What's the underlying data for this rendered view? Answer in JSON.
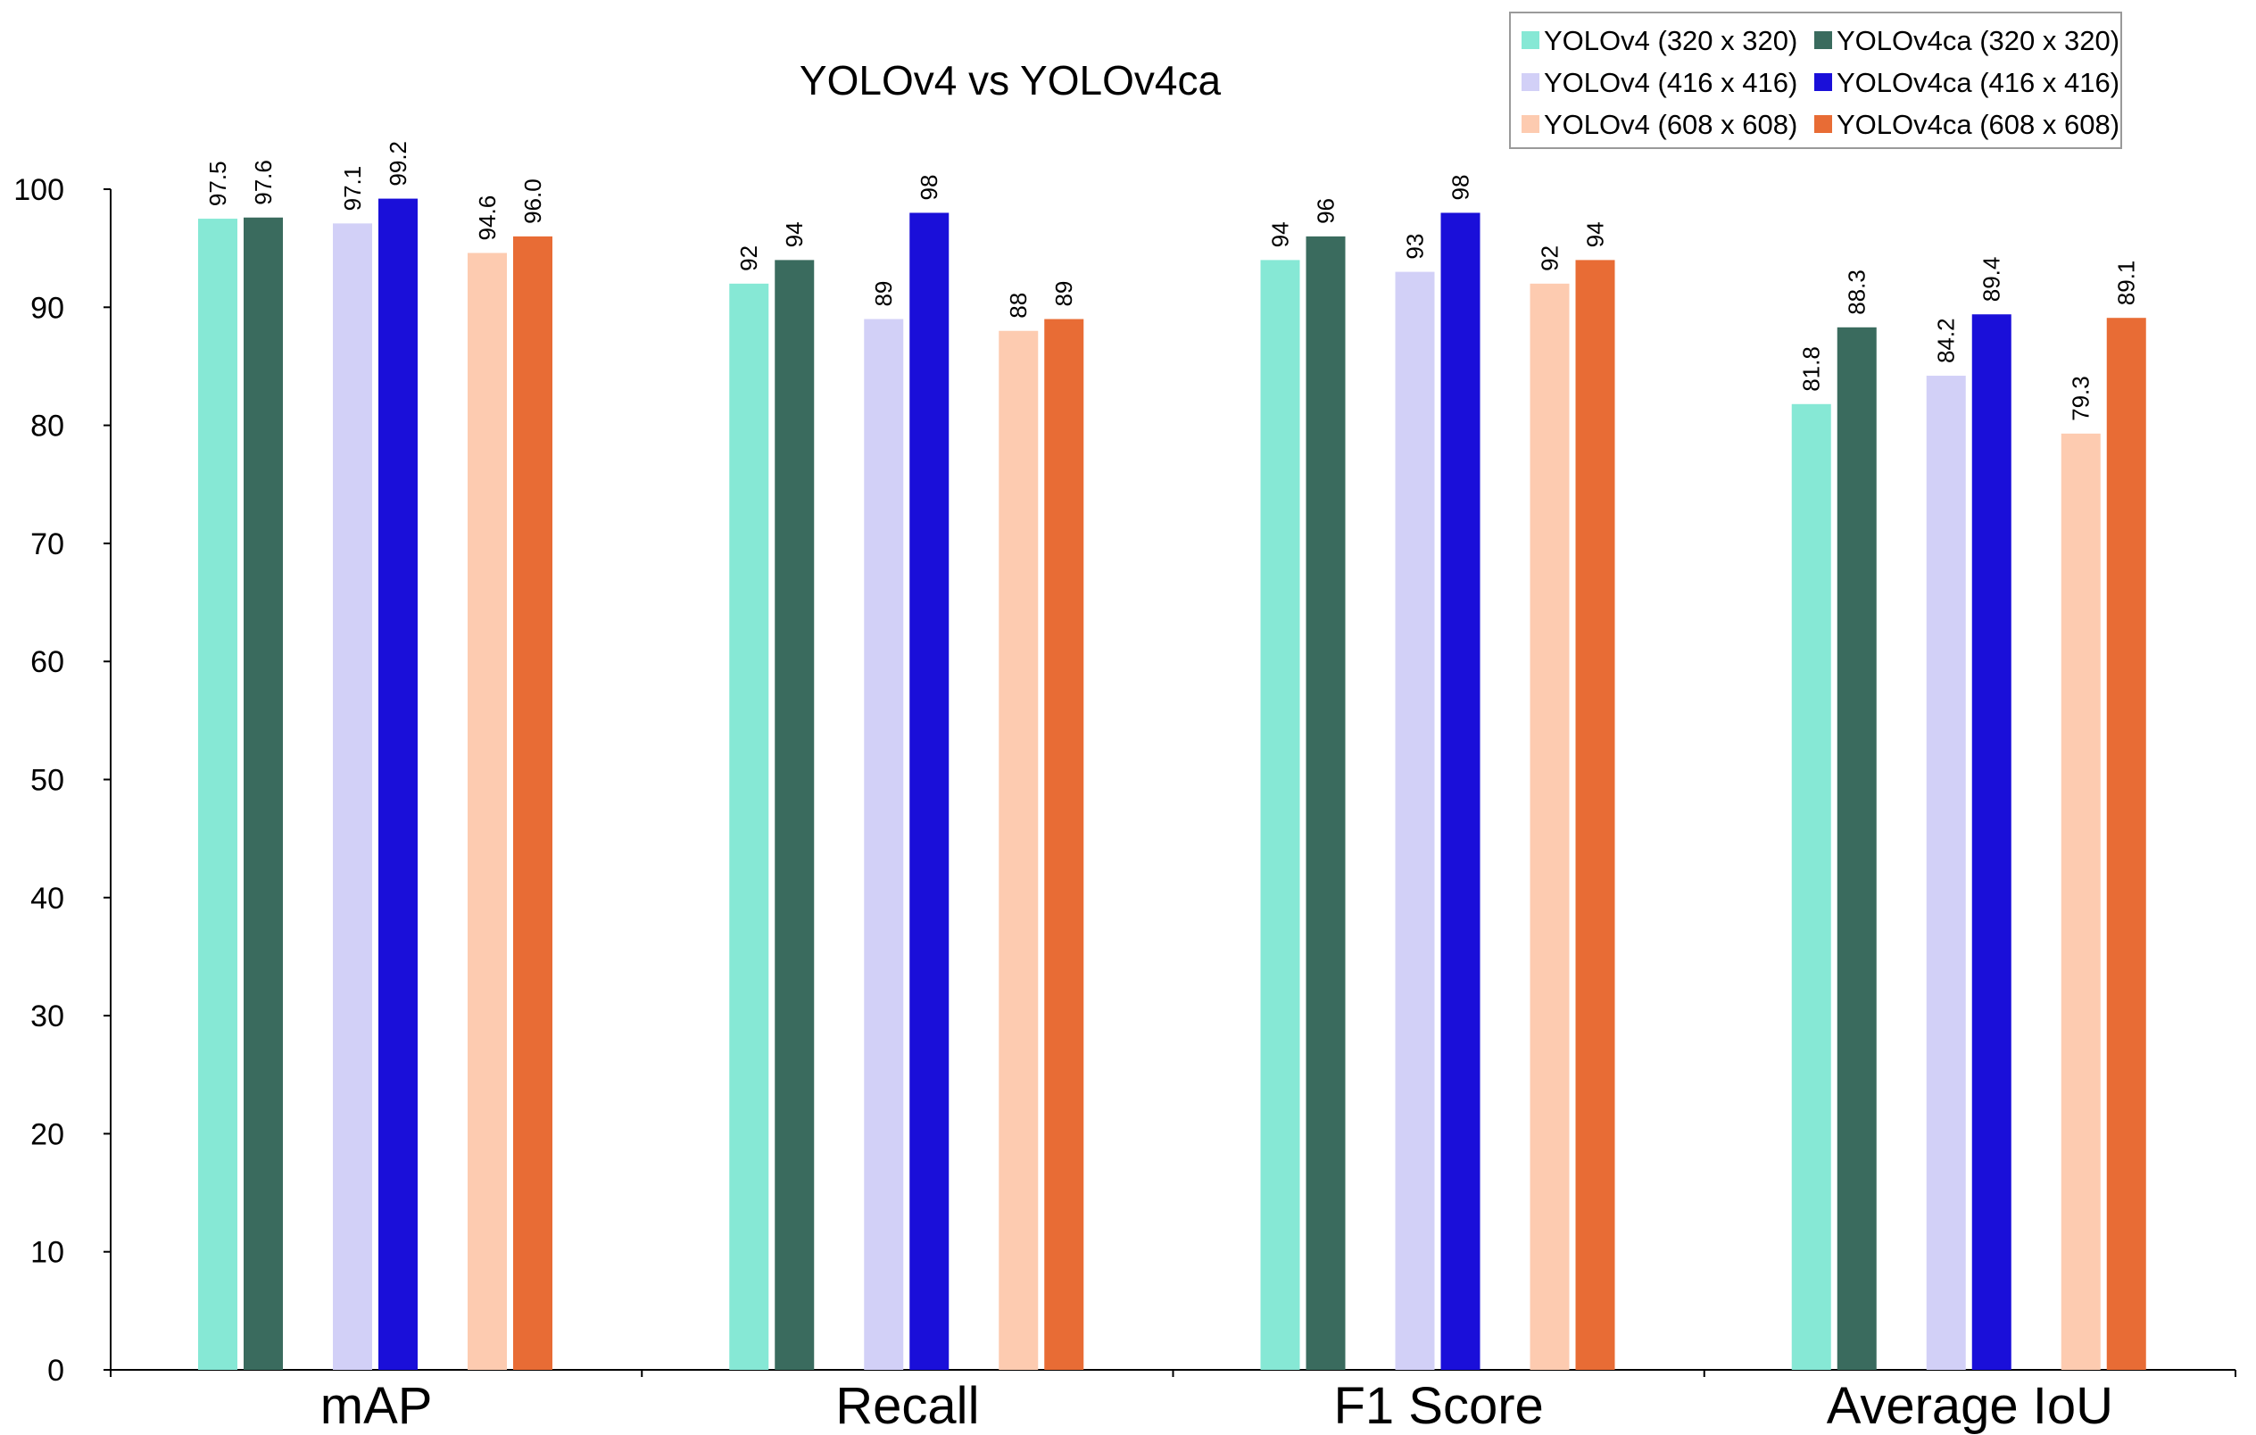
{
  "chart_data": {
    "type": "bar",
    "title": "YOLOv4 vs YOLOv4ca",
    "xlabel": "",
    "ylabel": "",
    "ylim": [
      0,
      100
    ],
    "yticks": [
      "0",
      "10",
      "20",
      "30",
      "40",
      "50",
      "60",
      "70",
      "80",
      "90",
      "100"
    ],
    "categories": [
      "mAP",
      "Recall",
      "F1 Score",
      "Average IoU"
    ],
    "series": [
      {
        "name": "YOLOv4 (320 x 320)",
        "color": "#86E8D5",
        "values": [
          97.5,
          92,
          94,
          81.8
        ],
        "labels": [
          "97.5",
          "92",
          "94",
          "81.8"
        ]
      },
      {
        "name": "YOLOv4ca (320 x 320)",
        "color": "#3A6B5E",
        "values": [
          97.6,
          94,
          96,
          88.3
        ],
        "labels": [
          "97.6",
          "94",
          "96",
          "88.3"
        ]
      },
      {
        "name": "YOLOv4 (416 x 416)",
        "color": "#D2D0F7",
        "values": [
          97.1,
          89,
          93,
          84.2
        ],
        "labels": [
          "97.1",
          "89",
          "93",
          "84.2"
        ]
      },
      {
        "name": "YOLOv4ca (416 x 416)",
        "color": "#1A0FD9",
        "values": [
          99.2,
          98,
          98,
          89.4
        ],
        "labels": [
          "99.2",
          "98",
          "98",
          "89.4"
        ]
      },
      {
        "name": "YOLOv4 (608 x 608)",
        "color": "#FDCBB0",
        "values": [
          94.6,
          88,
          92,
          79.3
        ],
        "labels": [
          "94.6",
          "88",
          "92",
          "79.3"
        ]
      },
      {
        "name": "YOLOv4ca (608 x 608)",
        "color": "#E86C35",
        "values": [
          96.0,
          89,
          94,
          89.1
        ],
        "labels": [
          "96.0",
          "89",
          "94",
          "89.1"
        ]
      }
    ],
    "legend_position": "top-right",
    "grid": false
  }
}
